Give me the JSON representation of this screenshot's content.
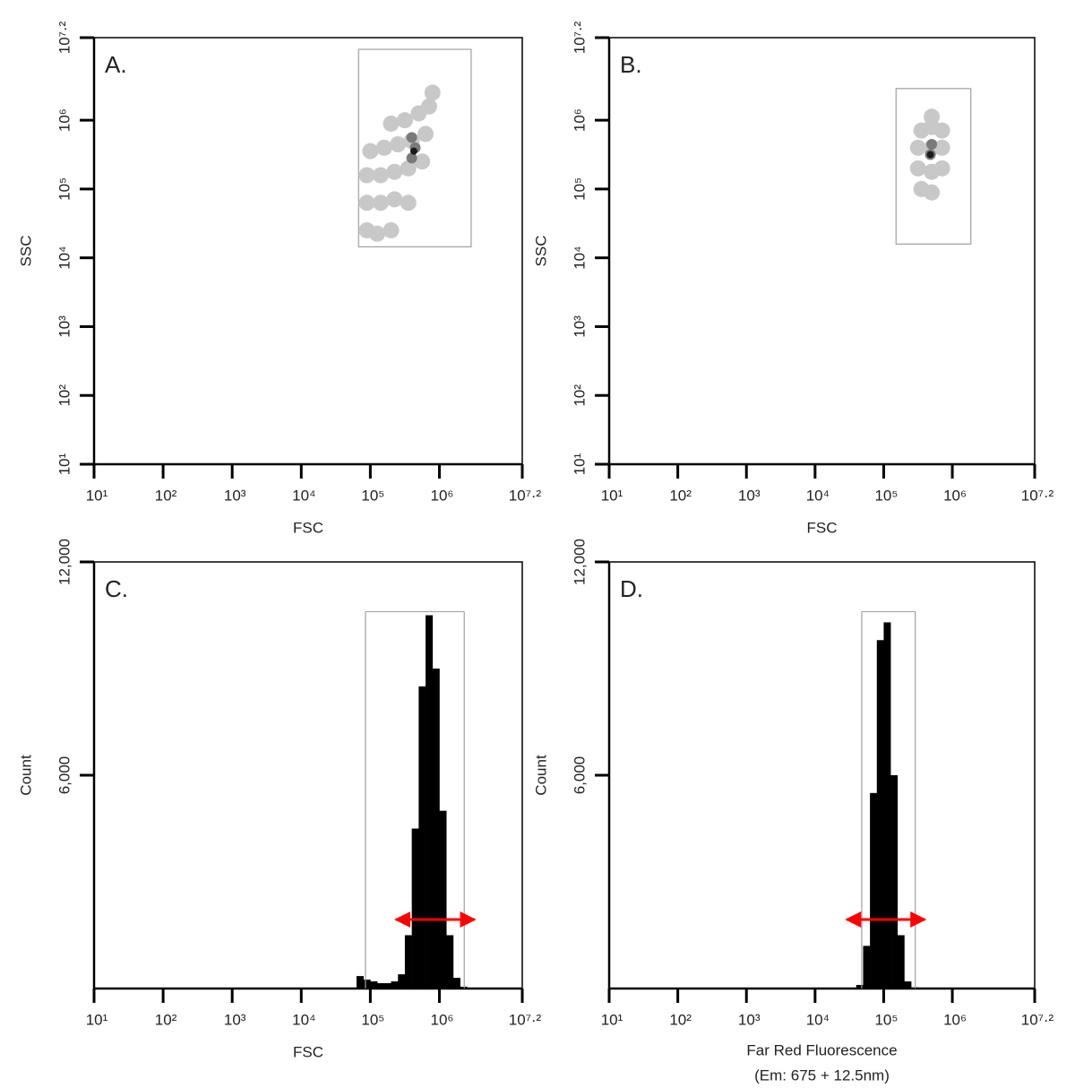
{
  "chart_data": [
    {
      "type": "scatter",
      "panel_label": "A.",
      "xlabel": "FSC",
      "ylabel": "SSC",
      "xscale": "log",
      "yscale": "log",
      "xlim": [
        10,
        15848932
      ],
      "ylim": [
        10,
        15848932
      ],
      "xticks": [
        {
          "value": 10,
          "label": "10¹"
        },
        {
          "value": 100,
          "label": "10²"
        },
        {
          "value": 1000,
          "label": "10³"
        },
        {
          "value": 10000,
          "label": "10⁴"
        },
        {
          "value": 100000,
          "label": "10⁵"
        },
        {
          "value": 1000000,
          "label": "10⁶"
        },
        {
          "value": 15848932,
          "label": "10⁷·²"
        }
      ],
      "yticks": [
        {
          "value": 10,
          "label": "10¹"
        },
        {
          "value": 100,
          "label": "10²"
        },
        {
          "value": 1000,
          "label": "10³"
        },
        {
          "value": 10000,
          "label": "10⁴"
        },
        {
          "value": 100000,
          "label": "10⁵"
        },
        {
          "value": 1000000,
          "label": "10⁶"
        },
        {
          "value": 15848932,
          "label": "10⁷·²"
        }
      ],
      "series": [
        {
          "color": "#c8c8c8",
          "x": [
            89125,
            125893,
            199526,
            89125,
            141254,
            223872,
            354813,
            89125,
            141254,
            223872,
            354813,
            562341,
            100000,
            158489,
            251189,
            398107,
            630957,
            199526,
            316228,
            501187,
            707946,
            794328
          ],
          "y": [
            25119,
            22387,
            25119,
            63096,
            63096,
            70795,
            63096,
            158489,
            158489,
            177828,
            199526,
            251189,
            354813,
            398107,
            446684,
            501187,
            630957,
            891251,
            1000000,
            1258925,
            1584893,
            2511886
          ]
        },
        {
          "color": "#7a7a7a",
          "x": [
            398107,
            446684,
            398107
          ],
          "y": [
            281838,
            398107,
            562341
          ]
        },
        {
          "color": "#1a1a1a",
          "x": [
            426580
          ],
          "y": [
            354813
          ]
        }
      ],
      "gate": {
        "color": "#a0a0a0",
        "xlim": [
          67608,
          2884032
        ],
        "ylim": [
          14454,
          10715193
        ]
      }
    },
    {
      "type": "scatter",
      "panel_label": "B.",
      "xlabel": "FSC",
      "ylabel": "SSC",
      "xscale": "log",
      "yscale": "log",
      "xlim": [
        10,
        15848932
      ],
      "ylim": [
        10,
        15848932
      ],
      "xticks": [
        {
          "value": 10,
          "label": "10¹"
        },
        {
          "value": 100,
          "label": "10²"
        },
        {
          "value": 1000,
          "label": "10³"
        },
        {
          "value": 10000,
          "label": "10⁴"
        },
        {
          "value": 100000,
          "label": "10⁵"
        },
        {
          "value": 1000000,
          "label": "10⁶"
        },
        {
          "value": 15848932,
          "label": "10⁷·²"
        }
      ],
      "yticks": [
        {
          "value": 10,
          "label": "10¹"
        },
        {
          "value": 100,
          "label": "10²"
        },
        {
          "value": 1000,
          "label": "10³"
        },
        {
          "value": 10000,
          "label": "10⁴"
        },
        {
          "value": 100000,
          "label": "10⁵"
        },
        {
          "value": 1000000,
          "label": "10⁶"
        },
        {
          "value": 15848932,
          "label": "10⁷·²"
        }
      ],
      "series": [
        {
          "color": "#c8c8c8",
          "x": [
            354813,
            501187,
            316228,
            501187,
            707946,
            316228,
            501187,
            707946,
            354813,
            501187,
            707946,
            501187
          ],
          "y": [
            100000,
            89125,
            199526,
            177828,
            199526,
            398107,
            398107,
            398107,
            707946,
            794328,
            707946,
            1122018
          ]
        },
        {
          "color": "#7a7a7a",
          "x": [
            478630,
            501187
          ],
          "y": [
            316228,
            446684
          ]
        },
        {
          "color": "#1a1a1a",
          "x": [
            478630
          ],
          "y": [
            316228
          ]
        }
      ],
      "gate": {
        "color": "#a0a0a0",
        "xlim": [
          151356,
          1862087
        ],
        "ylim": [
          15849,
          2884032
        ]
      }
    },
    {
      "type": "histogram",
      "panel_label": "C.",
      "xlabel": "FSC",
      "ylabel": "Count",
      "xscale": "log",
      "color": "#000000",
      "xlim": [
        10,
        15848932
      ],
      "ylim": [
        0,
        12000
      ],
      "xticks": [
        {
          "value": 10,
          "label": "10¹"
        },
        {
          "value": 100,
          "label": "10²"
        },
        {
          "value": 1000,
          "label": "10³"
        },
        {
          "value": 10000,
          "label": "10⁴"
        },
        {
          "value": 100000,
          "label": "10⁵"
        },
        {
          "value": 1000000,
          "label": "10⁶"
        },
        {
          "value": 15848932,
          "label": "10⁷·²"
        }
      ],
      "yticks": [
        {
          "value": 6000,
          "label": "6,000"
        },
        {
          "value": 12000,
          "label": "12,000"
        }
      ],
      "bins": [
        63096,
        79433,
        100000,
        125893,
        158489,
        199526,
        251189,
        316228,
        398107,
        501187,
        630957,
        794328,
        1000000,
        1258925,
        1584893,
        1995262,
        2511886
      ],
      "values": [
        350,
        250,
        200,
        150,
        150,
        200,
        400,
        1500,
        4500,
        8500,
        10500,
        9000,
        5000,
        1500,
        300,
        50
      ],
      "gate": {
        "color": "#a0a0a0",
        "x": [
          85114,
          2290868
        ],
        "y": 10600
      },
      "arrow": {
        "color": "#ff0000",
        "x": [
          234423,
          3235937
        ],
        "y": 1940
      }
    },
    {
      "type": "histogram",
      "panel_label": "D.",
      "xlabel": [
        "Far Red Fluorescence",
        "(Em: 675 + 12.5nm)"
      ],
      "ylabel": "Count",
      "xscale": "log",
      "color": "#000000",
      "xlim": [
        10,
        15848932
      ],
      "ylim": [
        0,
        12000
      ],
      "xticks": [
        {
          "value": 10,
          "label": "10¹"
        },
        {
          "value": 100,
          "label": "10²"
        },
        {
          "value": 1000,
          "label": "10³"
        },
        {
          "value": 10000,
          "label": "10⁴"
        },
        {
          "value": 100000,
          "label": "10⁵"
        },
        {
          "value": 1000000,
          "label": "10⁶"
        },
        {
          "value": 15848932,
          "label": "10⁷·²"
        }
      ],
      "yticks": [
        {
          "value": 6000,
          "label": "6,000"
        },
        {
          "value": 12000,
          "label": "12,000"
        }
      ],
      "bins": [
        39811,
        50119,
        63096,
        79433,
        100000,
        125893,
        158489,
        199526,
        251189,
        316228
      ],
      "values": [
        100,
        1200,
        5500,
        9800,
        10300,
        6000,
        1500,
        200,
        30
      ],
      "gate": {
        "color": "#a0a0a0",
        "x": [
          47863,
          288403
        ],
        "y": 10600
      },
      "arrow": {
        "color": "#ff0000",
        "x": [
          28840,
          398107
        ],
        "y": 1940
      }
    }
  ]
}
